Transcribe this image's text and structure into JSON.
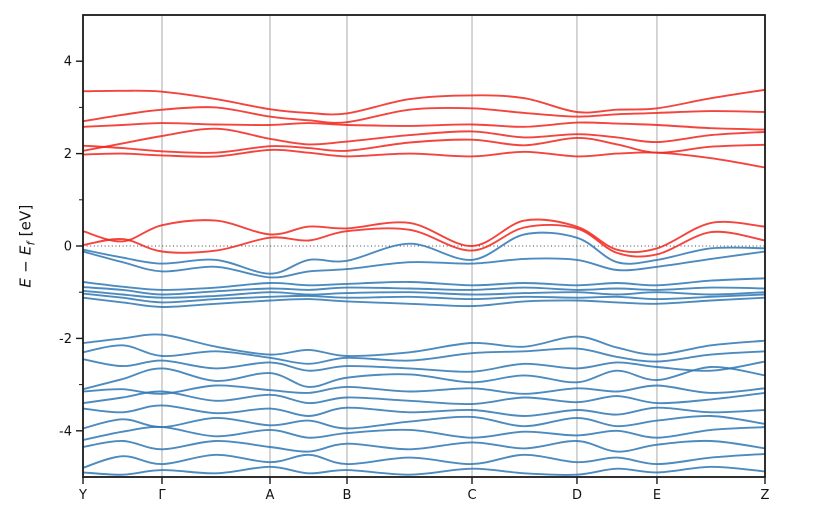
{
  "figure": {
    "ylabel_parts": {
      "var1": "E",
      "minus": " − ",
      "var2": "E",
      "sub": "f",
      "unit": " [eV]"
    }
  },
  "chart_data": {
    "type": "line",
    "title": "",
    "xlabel": "",
    "ylabel": "E − E_f [eV]",
    "ylim": [
      -5,
      5
    ],
    "yticks_major": [
      -4,
      -2,
      0,
      2,
      4
    ],
    "yticks_minor": [
      -3,
      -1,
      1,
      3
    ],
    "grid": "vertical lines at high-symmetry k-points",
    "legend": "none",
    "fermi_level": 0,
    "zero_line_style": "dotted",
    "colors": {
      "conduction": "#f1241c",
      "valence": "#2e77b4",
      "grid": "#aaaaaa",
      "axis": "#1a1a1a",
      "zero_line": "#444444"
    },
    "kpoints": [
      {
        "label": "Y",
        "x": 0.0,
        "grid": false
      },
      {
        "label": "Γ",
        "x": 0.1158,
        "grid": true
      },
      {
        "label": "A",
        "x": 0.2742,
        "grid": true
      },
      {
        "label": "B",
        "x": 0.3871,
        "grid": true
      },
      {
        "label": "C",
        "x": 0.5704,
        "grid": true
      },
      {
        "label": "D",
        "x": 0.7243,
        "grid": true
      },
      {
        "label": "E",
        "x": 0.8416,
        "grid": true
      },
      {
        "label": "Z",
        "x": 1.0,
        "grid": false
      }
    ],
    "x_stations": [
      0,
      0.058,
      0.116,
      0.195,
      0.274,
      0.331,
      0.387,
      0.479,
      0.57,
      0.647,
      0.724,
      0.783,
      0.842,
      0.921,
      1.0
    ],
    "series": [
      {
        "name": "conduction-1",
        "group": "conduction",
        "values": [
          3.35,
          3.36,
          3.34,
          3.18,
          2.96,
          2.88,
          2.87,
          3.18,
          3.26,
          3.2,
          2.9,
          2.95,
          2.98,
          3.2,
          3.38
        ]
      },
      {
        "name": "conduction-2",
        "group": "conduction",
        "values": [
          2.7,
          2.84,
          2.95,
          3.0,
          2.8,
          2.72,
          2.68,
          2.95,
          2.98,
          2.88,
          2.8,
          2.85,
          2.88,
          2.92,
          2.9
        ]
      },
      {
        "name": "conduction-3",
        "group": "conduction",
        "values": [
          2.58,
          2.62,
          2.66,
          2.63,
          2.62,
          2.66,
          2.62,
          2.6,
          2.63,
          2.58,
          2.67,
          2.65,
          2.62,
          2.55,
          2.52
        ]
      },
      {
        "name": "conduction-4",
        "group": "conduction",
        "values": [
          2.06,
          2.22,
          2.38,
          2.54,
          2.32,
          2.2,
          2.26,
          2.4,
          2.48,
          2.35,
          2.42,
          2.35,
          2.25,
          2.4,
          2.47
        ]
      },
      {
        "name": "conduction-5",
        "group": "conduction",
        "values": [
          2.17,
          2.12,
          2.05,
          2.02,
          2.16,
          2.12,
          2.06,
          2.24,
          2.3,
          2.18,
          2.34,
          2.2,
          2.02,
          2.15,
          2.19
        ]
      },
      {
        "name": "conduction-6",
        "group": "conduction",
        "values": [
          1.98,
          2.0,
          1.96,
          1.94,
          2.08,
          2.02,
          1.94,
          2.0,
          1.94,
          2.04,
          1.94,
          2.0,
          2.02,
          1.9,
          1.7
        ]
      },
      {
        "name": "conduction-7",
        "group": "conduction",
        "values": [
          0.32,
          0.1,
          0.45,
          0.55,
          0.25,
          0.42,
          0.38,
          0.5,
          0.0,
          0.55,
          0.42,
          -0.08,
          -0.05,
          0.5,
          0.42
        ]
      },
      {
        "name": "conduction-8",
        "group": "conduction",
        "values": [
          0.02,
          0.15,
          -0.12,
          -0.1,
          0.18,
          0.12,
          0.32,
          0.35,
          -0.1,
          0.4,
          0.38,
          -0.15,
          -0.18,
          0.3,
          0.12
        ]
      },
      {
        "name": "valence-1",
        "group": "valence",
        "values": [
          -0.08,
          -0.25,
          -0.38,
          -0.3,
          -0.6,
          -0.3,
          -0.32,
          0.05,
          -0.3,
          0.25,
          0.18,
          -0.35,
          -0.3,
          -0.05,
          -0.05
        ]
      },
      {
        "name": "valence-2",
        "group": "valence",
        "values": [
          -0.12,
          -0.35,
          -0.55,
          -0.45,
          -0.68,
          -0.55,
          -0.5,
          -0.35,
          -0.38,
          -0.28,
          -0.3,
          -0.52,
          -0.45,
          -0.28,
          -0.12
        ]
      },
      {
        "name": "valence-3",
        "group": "valence",
        "values": [
          -0.78,
          -0.88,
          -0.95,
          -0.9,
          -0.8,
          -0.85,
          -0.82,
          -0.78,
          -0.85,
          -0.8,
          -0.85,
          -0.8,
          -0.85,
          -0.75,
          -0.7
        ]
      },
      {
        "name": "valence-4",
        "group": "valence",
        "values": [
          -0.89,
          -0.95,
          -1.05,
          -0.98,
          -0.92,
          -0.95,
          -0.9,
          -0.92,
          -0.95,
          -0.9,
          -0.95,
          -0.92,
          -0.95,
          -0.9,
          -0.92
        ]
      },
      {
        "name": "valence-5",
        "group": "valence",
        "values": [
          -0.97,
          -1.05,
          -1.12,
          -1.08,
          -1.0,
          -1.05,
          -1.02,
          -1.0,
          -1.05,
          -1.02,
          -1.0,
          -1.05,
          -1.0,
          -1.05,
          -1.0
        ]
      },
      {
        "name": "valence-6",
        "group": "valence",
        "values": [
          -1.03,
          -1.12,
          -1.22,
          -1.15,
          -1.1,
          -1.08,
          -1.12,
          -1.1,
          -1.15,
          -1.1,
          -1.12,
          -1.1,
          -1.15,
          -1.1,
          -1.05
        ]
      },
      {
        "name": "valence-7",
        "group": "valence",
        "values": [
          -1.12,
          -1.22,
          -1.32,
          -1.25,
          -1.18,
          -1.15,
          -1.2,
          -1.25,
          -1.3,
          -1.2,
          -1.18,
          -1.22,
          -1.25,
          -1.18,
          -1.12
        ]
      },
      {
        "name": "valence-8",
        "group": "valence",
        "values": [
          -2.1,
          -2.0,
          -1.92,
          -2.18,
          -2.35,
          -2.25,
          -2.38,
          -2.3,
          -2.1,
          -2.18,
          -1.96,
          -2.2,
          -2.35,
          -2.15,
          -2.05
        ]
      },
      {
        "name": "valence-9",
        "group": "valence",
        "values": [
          -2.3,
          -2.15,
          -2.38,
          -2.28,
          -2.42,
          -2.55,
          -2.42,
          -2.48,
          -2.32,
          -2.28,
          -2.22,
          -2.4,
          -2.5,
          -2.35,
          -2.28
        ]
      },
      {
        "name": "valence-10",
        "group": "valence",
        "values": [
          -2.45,
          -2.6,
          -2.48,
          -2.65,
          -2.52,
          -2.7,
          -2.6,
          -2.65,
          -2.72,
          -2.55,
          -2.65,
          -2.52,
          -2.62,
          -2.7,
          -2.5
        ]
      },
      {
        "name": "valence-11",
        "group": "valence",
        "values": [
          -3.1,
          -2.88,
          -2.65,
          -2.92,
          -2.75,
          -3.05,
          -2.85,
          -2.78,
          -2.95,
          -2.8,
          -2.95,
          -2.7,
          -2.9,
          -2.62,
          -2.8
        ]
      },
      {
        "name": "valence-12",
        "group": "valence",
        "values": [
          -3.15,
          -3.1,
          -3.2,
          -3.02,
          -3.12,
          -3.18,
          -3.05,
          -3.15,
          -3.08,
          -3.2,
          -3.08,
          -3.15,
          -3.02,
          -3.18,
          -3.08
        ]
      },
      {
        "name": "valence-13",
        "group": "valence",
        "values": [
          -3.4,
          -3.28,
          -3.15,
          -3.35,
          -3.22,
          -3.4,
          -3.28,
          -3.35,
          -3.42,
          -3.28,
          -3.38,
          -3.25,
          -3.4,
          -3.32,
          -3.18
        ]
      },
      {
        "name": "valence-14",
        "group": "valence",
        "values": [
          -3.52,
          -3.6,
          -3.45,
          -3.62,
          -3.52,
          -3.68,
          -3.5,
          -3.6,
          -3.55,
          -3.68,
          -3.55,
          -3.65,
          -3.5,
          -3.6,
          -3.55
        ]
      },
      {
        "name": "valence-15",
        "group": "valence",
        "values": [
          -3.95,
          -3.75,
          -3.92,
          -3.72,
          -3.88,
          -3.78,
          -3.95,
          -3.8,
          -3.7,
          -3.9,
          -3.72,
          -3.9,
          -3.78,
          -3.68,
          -3.85
        ]
      },
      {
        "name": "valence-16",
        "group": "valence",
        "values": [
          -4.2,
          -4.02,
          -3.92,
          -4.12,
          -3.98,
          -4.15,
          -4.05,
          -3.98,
          -4.15,
          -4.02,
          -4.1,
          -4.0,
          -4.15,
          -3.98,
          -3.92
        ]
      },
      {
        "name": "valence-17",
        "group": "valence",
        "values": [
          -4.35,
          -4.22,
          -4.4,
          -4.22,
          -4.35,
          -4.45,
          -4.28,
          -4.4,
          -4.25,
          -4.38,
          -4.22,
          -4.45,
          -4.3,
          -4.22,
          -4.38
        ]
      },
      {
        "name": "valence-18",
        "group": "valence",
        "values": [
          -4.8,
          -4.55,
          -4.72,
          -4.52,
          -4.68,
          -4.52,
          -4.72,
          -4.58,
          -4.72,
          -4.52,
          -4.68,
          -4.58,
          -4.72,
          -4.58,
          -4.5
        ]
      },
      {
        "name": "valence-19",
        "group": "valence",
        "values": [
          -4.9,
          -4.95,
          -4.85,
          -4.92,
          -4.78,
          -4.92,
          -4.85,
          -4.95,
          -4.82,
          -4.92,
          -4.95,
          -4.82,
          -4.9,
          -4.78,
          -4.88
        ]
      }
    ]
  }
}
